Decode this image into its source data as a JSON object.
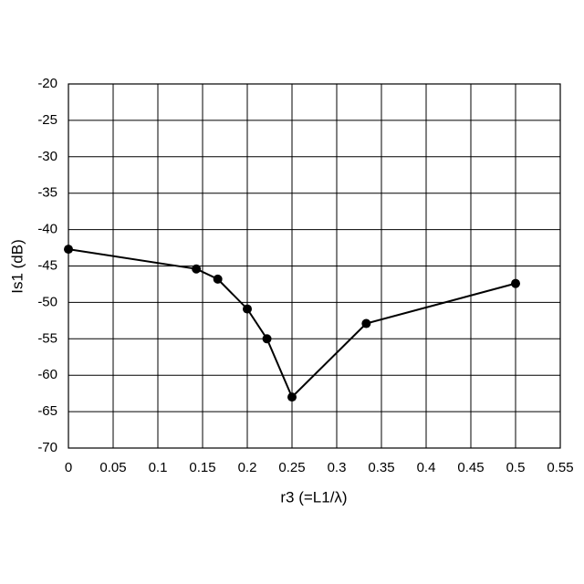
{
  "chart_data": {
    "type": "line",
    "x_label": "r3 (=L1/λ)",
    "y_label": "Is1 (dB)",
    "x": [
      0,
      0.143,
      0.167,
      0.2,
      0.222,
      0.25,
      0.333,
      0.5
    ],
    "series": [
      {
        "color": "#000000",
        "values": [
          -42.7,
          -45.4,
          -46.8,
          -50.9,
          -55.0,
          -63.0,
          -52.9,
          -47.4
        ]
      }
    ],
    "xlim": [
      0,
      0.55
    ],
    "xticks": [
      0,
      0.05,
      0.1,
      0.15,
      0.2,
      0.25,
      0.3,
      0.35,
      0.4,
      0.45,
      0.5,
      0.55
    ],
    "ylim": [
      -70,
      -20
    ],
    "yticks": [
      -70,
      -65,
      -60,
      -55,
      -50,
      -45,
      -40,
      -35,
      -30,
      -25,
      -20
    ],
    "grid": true
  }
}
